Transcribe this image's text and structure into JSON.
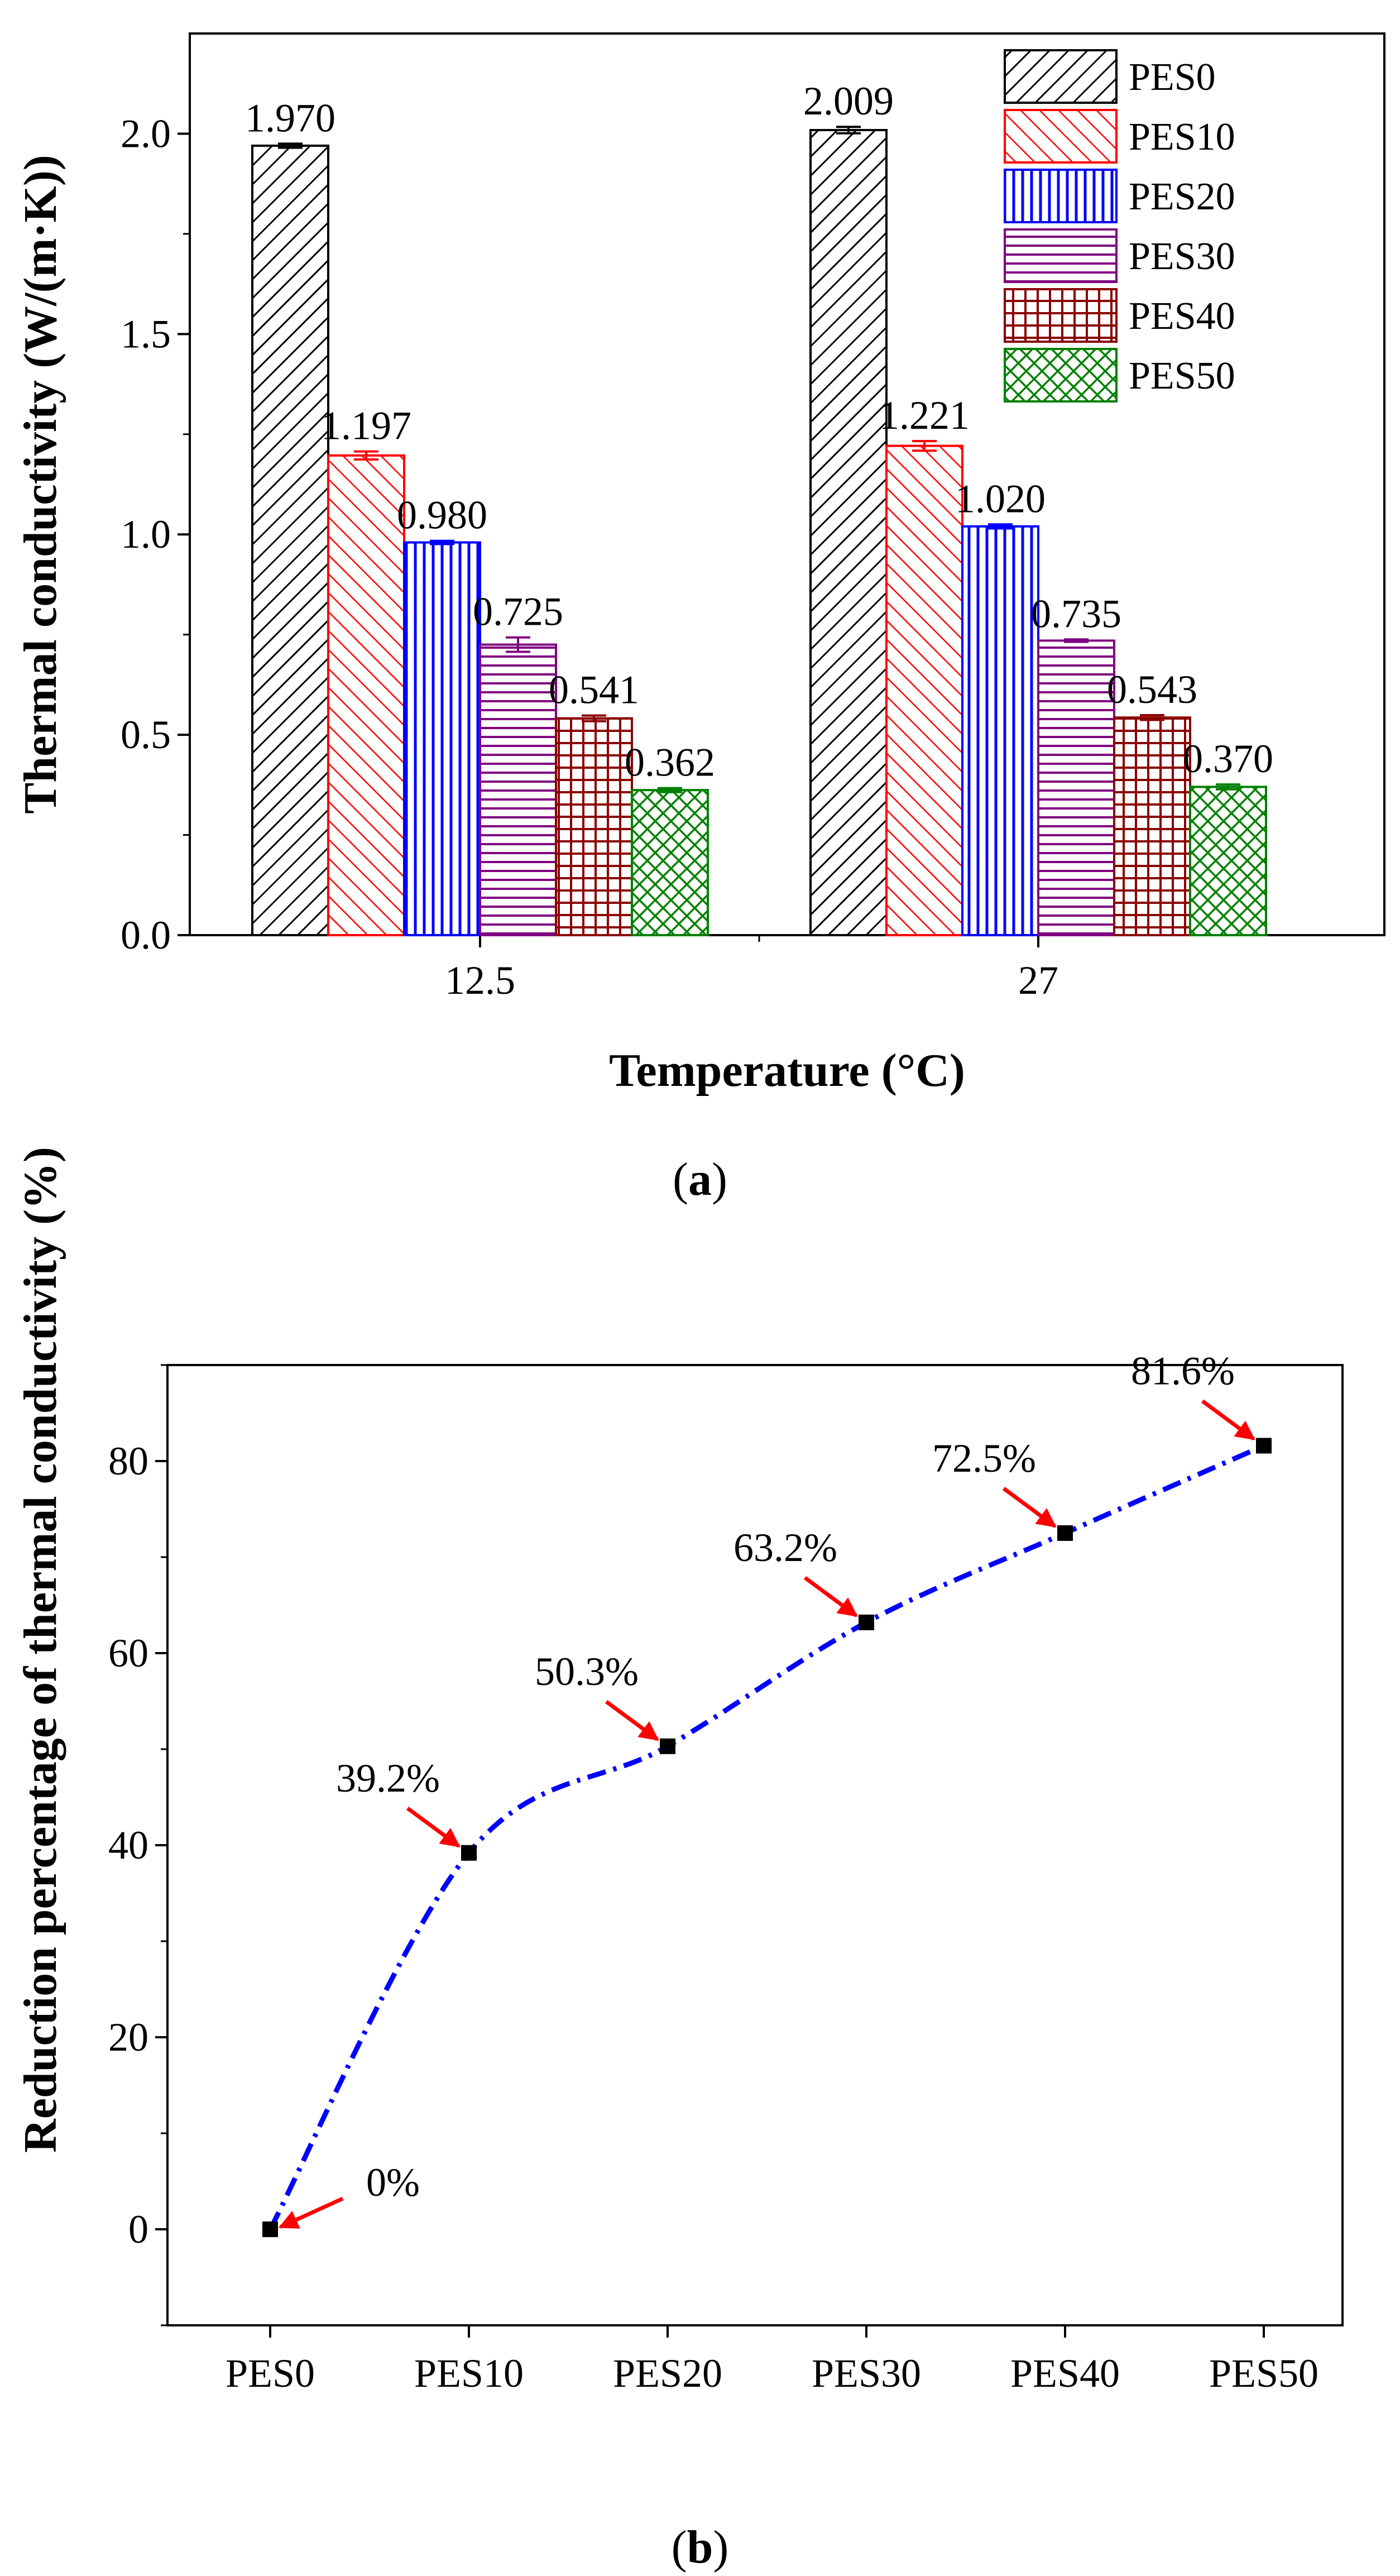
{
  "panel_labels": {
    "a": "(a)",
    "b": "(b)",
    "a_letter": "a",
    "b_letter": "b"
  },
  "chart_data": [
    {
      "id": "a",
      "type": "bar",
      "xlabel": "Temperature (°C)",
      "ylabel": "Thermal conductivity (W/(m·K))",
      "ylim": [
        0.0,
        2.25
      ],
      "yticks": [
        0.0,
        0.5,
        1.0,
        1.5,
        2.0
      ],
      "ytick_labels": [
        "0.0",
        "0.5",
        "1.0",
        "1.5",
        "2.0"
      ],
      "categories": [
        "12.5",
        "27"
      ],
      "legend_position": "top-right",
      "series": [
        {
          "name": "PES0",
          "values": [
            1.97,
            2.009
          ],
          "labels": [
            "1.970",
            "2.009"
          ],
          "errors": [
            0.005,
            0.008
          ],
          "color": "#000000",
          "pattern": "diag-up"
        },
        {
          "name": "PES10",
          "values": [
            1.197,
            1.221
          ],
          "labels": [
            "1.197",
            "1.221"
          ],
          "errors": [
            0.01,
            0.012
          ],
          "color": "#ff0000",
          "pattern": "diag-down"
        },
        {
          "name": "PES20",
          "values": [
            0.98,
            1.02
          ],
          "labels": [
            "0.980",
            "1.020"
          ],
          "errors": [
            0.004,
            0.005
          ],
          "color": "#0000ff",
          "pattern": "vertical"
        },
        {
          "name": "PES30",
          "values": [
            0.725,
            0.735
          ],
          "labels": [
            "0.725",
            "0.735"
          ],
          "errors": [
            0.018,
            0.003
          ],
          "color": "#800080",
          "pattern": "horizontal"
        },
        {
          "name": "PES40",
          "values": [
            0.541,
            0.543
          ],
          "labels": [
            "0.541",
            "0.543"
          ],
          "errors": [
            0.007,
            0.006
          ],
          "color": "#8b0000",
          "pattern": "grid"
        },
        {
          "name": "PES50",
          "values": [
            0.362,
            0.37
          ],
          "labels": [
            "0.362",
            "0.370"
          ],
          "errors": [
            0.005,
            0.006
          ],
          "color": "#008000",
          "pattern": "crosshatch"
        }
      ]
    },
    {
      "id": "b",
      "type": "scatter",
      "xlabel": "",
      "ylabel": "Reduction percentage of thermal conductivity (%)",
      "ylim": [
        -10,
        90
      ],
      "yticks": [
        0,
        20,
        40,
        60,
        80
      ],
      "ytick_labels": [
        "0",
        "20",
        "40",
        "60",
        "80"
      ],
      "categories": [
        "PES0",
        "PES10",
        "PES20",
        "PES30",
        "PES40",
        "PES50"
      ],
      "values": [
        0,
        39.2,
        50.3,
        63.2,
        72.5,
        81.6
      ],
      "labels": [
        "0%",
        "39.2%",
        "50.3%",
        "63.2%",
        "72.5%",
        "81.6%"
      ],
      "label_side": [
        "right",
        "left",
        "left",
        "left",
        "left",
        "left"
      ],
      "fit_curve": {
        "style": "dash-dot",
        "color": "#0000ff"
      },
      "marker_color": "#000000",
      "arrow_color": "#ff0000"
    }
  ]
}
